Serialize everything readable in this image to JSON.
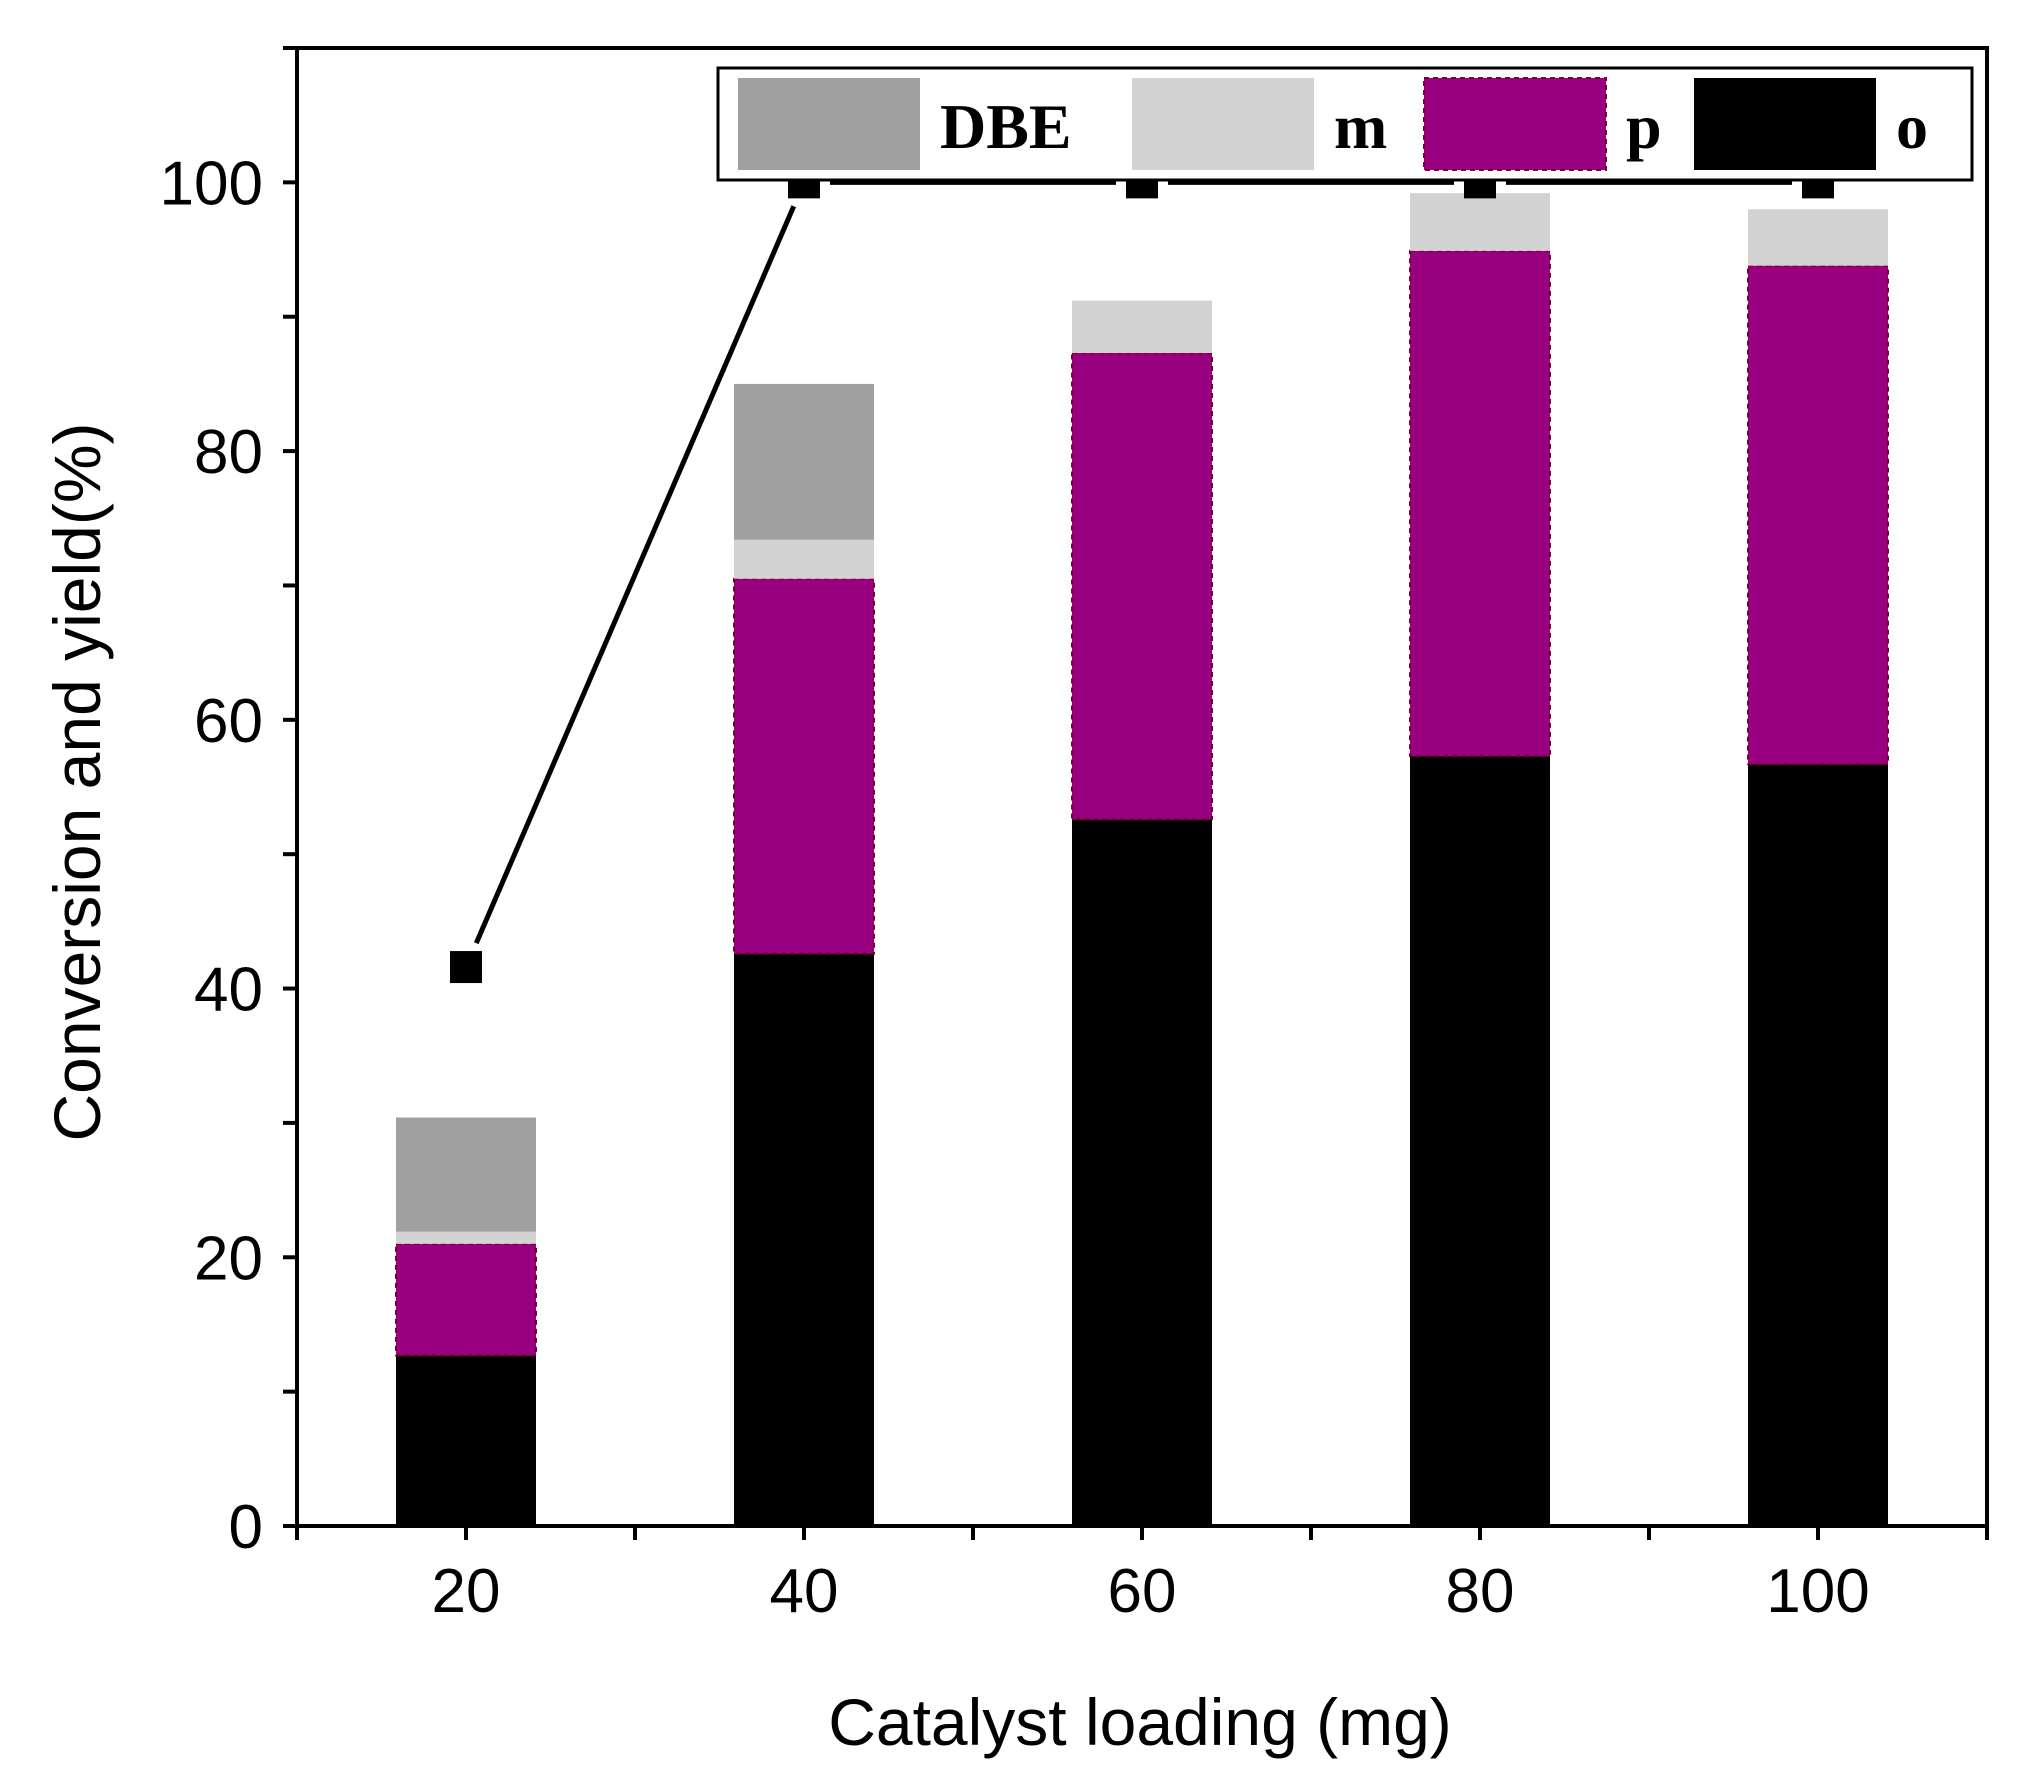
{
  "chart_data": {
    "type": "bar",
    "stacked": true,
    "categories": [
      "20",
      "40",
      "60",
      "80",
      "100"
    ],
    "x": [
      20,
      40,
      60,
      80,
      100
    ],
    "xlabel": "Catalyst loading (mg)",
    "ylabel": "Conversion and yield(%)",
    "xlim": [
      10,
      110
    ],
    "ylim": [
      0,
      110
    ],
    "xticks": [
      20,
      40,
      60,
      80,
      100
    ],
    "yticks": [
      0,
      20,
      40,
      60,
      80,
      100
    ],
    "grid": false,
    "legend_position": "top-right",
    "series": [
      {
        "name": "o",
        "color": "#000000",
        "values": [
          12.7,
          42.6,
          52.6,
          57.3,
          56.7
        ]
      },
      {
        "name": "p",
        "color": "#990080",
        "values": [
          8.3,
          27.9,
          34.7,
          37.6,
          37.1
        ]
      },
      {
        "name": "m",
        "color": "#d3d3d3",
        "values": [
          0.9,
          2.9,
          3.9,
          4.3,
          4.2
        ]
      },
      {
        "name": "DBE",
        "color": "#a0a0a0",
        "values": [
          8.5,
          11.6,
          0,
          0,
          0
        ]
      }
    ],
    "legend_order": [
      "DBE",
      "m",
      "p",
      "o"
    ],
    "conversion_line": {
      "marker": "square",
      "color": "#000000",
      "x": [
        20,
        40,
        60,
        80,
        100
      ],
      "values": [
        41.6,
        100,
        100,
        100,
        100
      ]
    }
  }
}
